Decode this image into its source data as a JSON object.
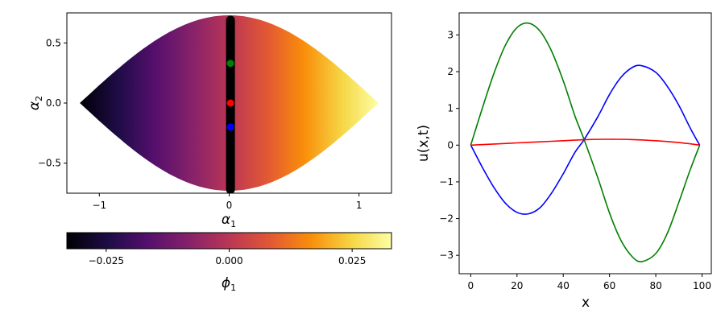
{
  "chart_data": [
    {
      "type": "scatter",
      "title": "",
      "xlabel": "α1",
      "ylabel": "α2",
      "xlim": [
        -1.25,
        1.25
      ],
      "ylim": [
        -0.75,
        0.75
      ],
      "xticks": [
        -1,
        0,
        1
      ],
      "xtick_labels": [
        "−1",
        "0",
        "1"
      ],
      "yticks": [
        -0.5,
        0.0,
        0.5
      ],
      "ytick_labels": [
        "−0.5",
        "0.0",
        "0.5"
      ],
      "point_cloud": {
        "shape": "lens",
        "x_extent": [
          -1.15,
          1.15
        ],
        "max_abs_y_at_x0": 0.73,
        "color_by": "α1",
        "colormap": "inferno",
        "colorbar_label": "ϕ1",
        "colorbar_range": [
          -0.033,
          0.033
        ],
        "colorbar_ticks": [
          -0.025,
          0.0,
          0.025
        ],
        "colorbar_tick_labels": [
          "−0.025",
          "0.000",
          "0.025"
        ]
      },
      "band": {
        "color": "#000000",
        "x": 0.01,
        "y_range": [
          -0.72,
          0.69
        ]
      },
      "highlight_points": [
        {
          "x": 0.01,
          "y": 0.33,
          "color": "#008000"
        },
        {
          "x": 0.01,
          "y": 0.0,
          "color": "#ff0000"
        },
        {
          "x": 0.01,
          "y": -0.2,
          "color": "#0000ff"
        }
      ]
    },
    {
      "type": "line",
      "title": "",
      "xlabel": "x",
      "ylabel": "u(x,t)",
      "xlim": [
        -5,
        104
      ],
      "ylim": [
        -3.5,
        3.6
      ],
      "xticks": [
        0,
        20,
        40,
        60,
        80,
        100
      ],
      "xtick_labels": [
        "0",
        "20",
        "40",
        "60",
        "80",
        "100"
      ],
      "yticks": [
        -3,
        -2,
        -1,
        0,
        1,
        2,
        3
      ],
      "ytick_labels": [
        "−3",
        "−2",
        "−1",
        "0",
        "1",
        "2",
        "3"
      ],
      "series": [
        {
          "color": "#008000",
          "x": [
            0,
            5,
            10,
            15,
            20,
            25,
            30,
            35,
            40,
            45,
            49,
            55,
            60,
            65,
            70,
            74,
            80,
            85,
            90,
            95,
            99
          ],
          "values": [
            0,
            1.0,
            1.95,
            2.72,
            3.2,
            3.32,
            3.1,
            2.55,
            1.75,
            0.8,
            0.15,
            -0.9,
            -1.85,
            -2.6,
            -3.05,
            -3.17,
            -2.95,
            -2.4,
            -1.55,
            -0.65,
            0
          ]
        },
        {
          "color": "#0000ff",
          "x": [
            0,
            5,
            10,
            15,
            20,
            25,
            30,
            35,
            40,
            45,
            49,
            55,
            60,
            65,
            70,
            74,
            80,
            85,
            90,
            95,
            99
          ],
          "values": [
            0,
            -0.6,
            -1.15,
            -1.58,
            -1.83,
            -1.87,
            -1.7,
            -1.3,
            -0.78,
            -0.2,
            0.15,
            0.78,
            1.38,
            1.85,
            2.12,
            2.16,
            1.98,
            1.6,
            1.08,
            0.45,
            0
          ]
        },
        {
          "color": "#ff0000",
          "x": [
            0,
            10,
            20,
            30,
            40,
            50,
            60,
            70,
            80,
            90,
            99
          ],
          "values": [
            0,
            0.03,
            0.06,
            0.09,
            0.12,
            0.15,
            0.16,
            0.15,
            0.12,
            0.07,
            0
          ]
        }
      ]
    }
  ]
}
